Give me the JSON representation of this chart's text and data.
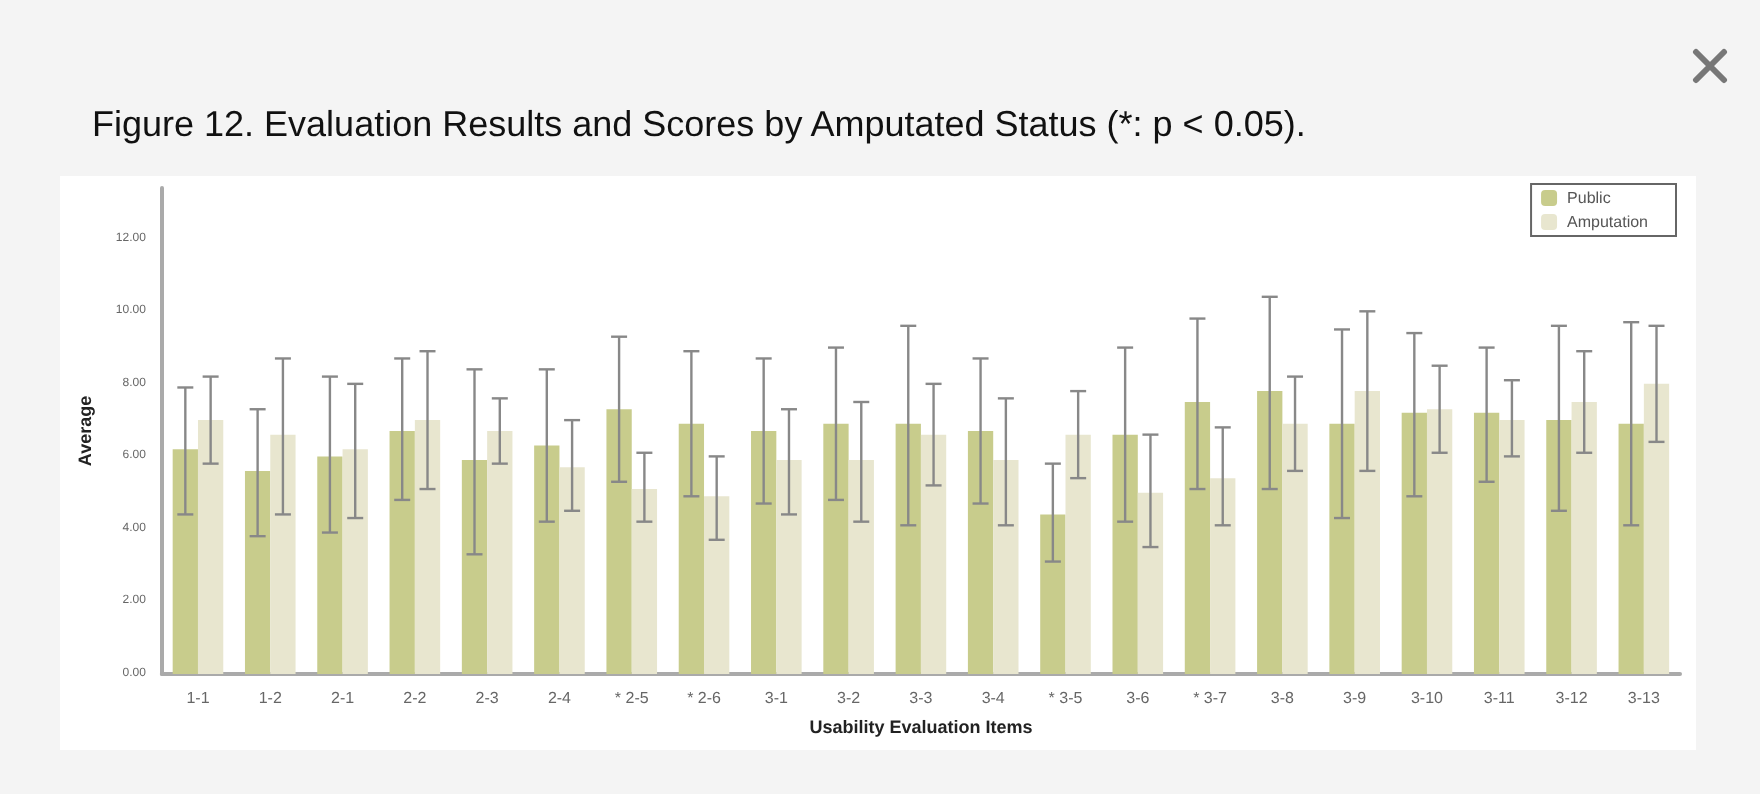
{
  "chart_data": {
    "type": "bar",
    "title": "Figure 12. Evaluation Results and Scores by Amputated Status (*: p < 0.05).",
    "xlabel": "Usability Evaluation Items",
    "ylabel": "Average",
    "categories": [
      "1-1",
      "1-2",
      "2-1",
      "2-2",
      "2-3",
      "2-4",
      "* 2-5",
      "* 2-6",
      "3-1",
      "3-2",
      "3-3",
      "3-4",
      "* 3-5",
      "3-6",
      "* 3-7",
      "3-8",
      "3-9",
      "3-10",
      "3-11",
      "3-12",
      "3-13"
    ],
    "series": [
      {
        "name": "Public",
        "color": "#c8cc8c",
        "values": [
          6.2,
          5.6,
          6.0,
          6.7,
          5.9,
          6.3,
          7.3,
          6.9,
          6.7,
          6.9,
          6.9,
          6.7,
          4.4,
          6.6,
          7.5,
          7.8,
          6.9,
          7.2,
          7.2,
          7.0,
          6.9
        ],
        "errors": [
          [
            4.4,
            7.9
          ],
          [
            3.8,
            7.3
          ],
          [
            3.9,
            8.2
          ],
          [
            4.8,
            8.7
          ],
          [
            3.3,
            8.4
          ],
          [
            4.2,
            8.4
          ],
          [
            5.3,
            9.3
          ],
          [
            4.9,
            8.9
          ],
          [
            4.7,
            8.7
          ],
          [
            4.8,
            9.0
          ],
          [
            4.1,
            9.6
          ],
          [
            4.7,
            8.7
          ],
          [
            3.1,
            5.8
          ],
          [
            4.2,
            9.0
          ],
          [
            5.1,
            9.8
          ],
          [
            5.1,
            10.4
          ],
          [
            4.3,
            9.5
          ],
          [
            4.9,
            9.4
          ],
          [
            5.3,
            9.0
          ],
          [
            4.5,
            9.6
          ],
          [
            4.1,
            9.7
          ]
        ]
      },
      {
        "name": "Amputation",
        "color": "#e8e6cf",
        "values": [
          7.0,
          6.6,
          6.2,
          7.0,
          6.7,
          5.7,
          5.1,
          4.9,
          5.9,
          5.9,
          6.6,
          5.9,
          6.6,
          5.0,
          5.4,
          6.9,
          7.8,
          7.3,
          7.0,
          7.5,
          8.0
        ],
        "errors": [
          [
            5.8,
            8.2
          ],
          [
            4.4,
            8.7
          ],
          [
            4.3,
            8.0
          ],
          [
            5.1,
            8.9
          ],
          [
            5.8,
            7.6
          ],
          [
            4.5,
            7.0
          ],
          [
            4.2,
            6.1
          ],
          [
            3.7,
            6.0
          ],
          [
            4.4,
            7.3
          ],
          [
            4.2,
            7.5
          ],
          [
            5.2,
            8.0
          ],
          [
            4.1,
            7.6
          ],
          [
            5.4,
            7.8
          ],
          [
            3.5,
            6.6
          ],
          [
            4.1,
            6.8
          ],
          [
            5.6,
            8.2
          ],
          [
            5.6,
            10.0
          ],
          [
            6.1,
            8.5
          ],
          [
            6.0,
            8.1
          ],
          [
            6.1,
            8.9
          ],
          [
            6.4,
            9.6
          ]
        ]
      }
    ],
    "ylim": [
      0,
      13.4
    ],
    "yticks": [
      {
        "value": 0,
        "label": "0.00"
      },
      {
        "value": 2,
        "label": "2.00"
      },
      {
        "value": 4,
        "label": "4.00"
      },
      {
        "value": 6,
        "label": "6.00"
      },
      {
        "value": 8,
        "label": "8.00"
      },
      {
        "value": 10,
        "label": "10.00"
      },
      {
        "value": 12,
        "label": "12.00"
      }
    ],
    "grid": false,
    "legend": "top right"
  }
}
